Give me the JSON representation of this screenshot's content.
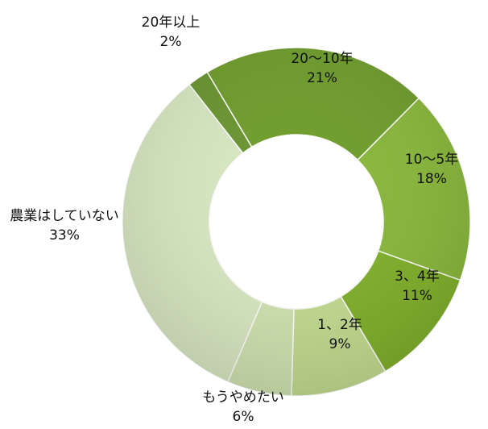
{
  "chart_data": {
    "type": "donut",
    "categories": [
      "20年以上",
      "20～10年",
      "10～5年",
      "3、4年",
      "1、2年",
      "もうやめたい",
      "農業はしていない"
    ],
    "values": [
      2,
      21,
      18,
      11,
      9,
      6,
      33
    ],
    "value_labels": [
      "2%",
      "21%",
      "18%",
      "11%",
      "9%",
      "6%",
      "33%"
    ],
    "colors": [
      "#6a9530",
      "#6f9d2c",
      "#89b83b",
      "#80b12a",
      "#c3dc90",
      "#d0e3b0",
      "#d8e8c2"
    ]
  }
}
